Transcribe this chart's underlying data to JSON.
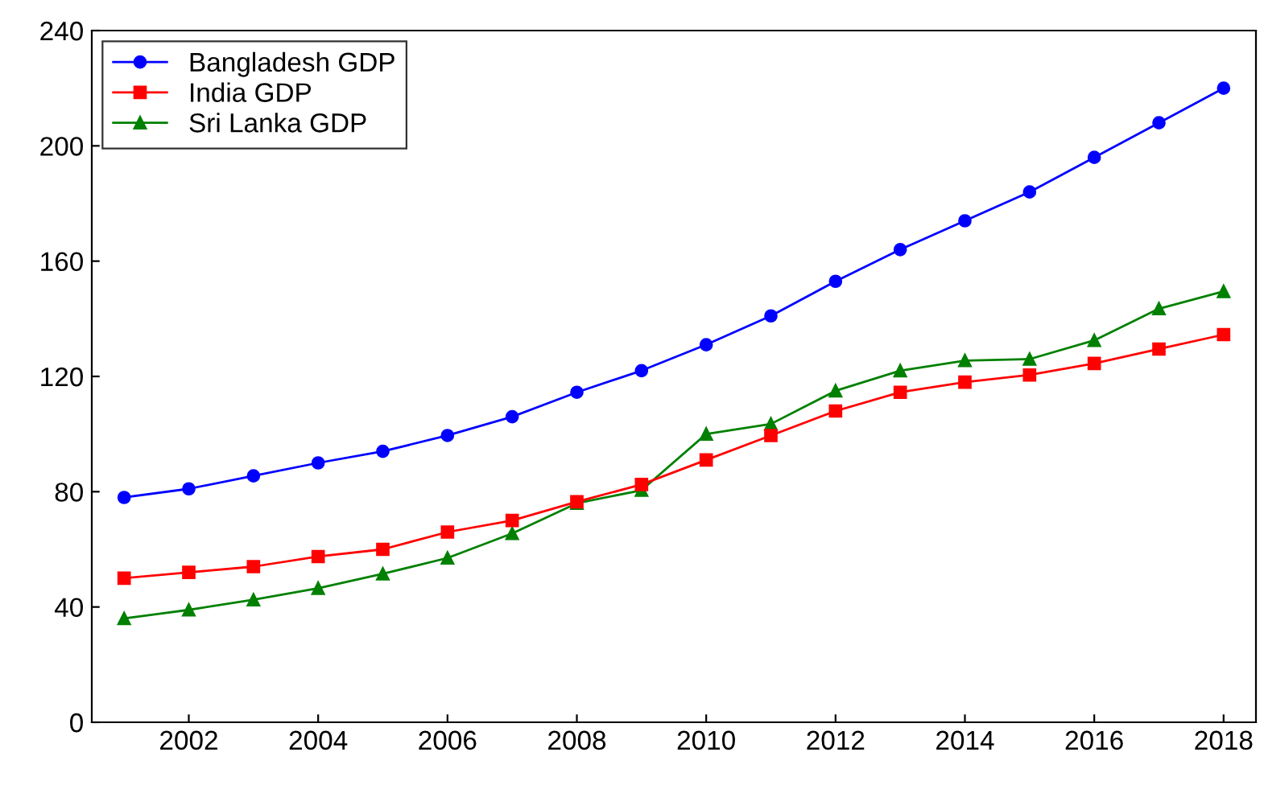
{
  "chart_data": {
    "type": "line",
    "x": [
      2001,
      2002,
      2003,
      2004,
      2005,
      2006,
      2007,
      2008,
      2009,
      2010,
      2011,
      2012,
      2013,
      2014,
      2015,
      2016,
      2017,
      2018
    ],
    "series": [
      {
        "name": "Bangladesh GDP",
        "color": "#0000ff",
        "marker": "circle",
        "values": [
          78,
          81,
          85.5,
          90,
          94,
          99.5,
          106,
          114.5,
          122,
          131,
          141,
          153,
          164,
          174,
          184,
          196,
          208,
          220
        ]
      },
      {
        "name": "India GDP",
        "color": "#ff0000",
        "marker": "square",
        "values": [
          50,
          52,
          54,
          57.5,
          60,
          66,
          70,
          76.5,
          82.5,
          91,
          99.5,
          108,
          114.5,
          118,
          120.5,
          124.5,
          129.5,
          134.5
        ]
      },
      {
        "name": "Sri Lanka GDP",
        "color": "#008000",
        "marker": "triangle",
        "values": [
          36,
          39,
          42.5,
          46.5,
          51.5,
          57,
          65.5,
          76,
          80.5,
          100,
          103.5,
          115,
          122,
          125.5,
          126,
          132.5,
          143.5,
          149.5
        ]
      }
    ],
    "xlim": [
      2000.5,
      2018.5
    ],
    "xticks": [
      2002,
      2004,
      2006,
      2008,
      2010,
      2012,
      2014,
      2016,
      2018
    ],
    "ylim": [
      0,
      240
    ],
    "yticks": [
      0,
      40,
      80,
      120,
      160,
      200,
      240
    ],
    "grid": false,
    "legend": "top left",
    "line_style": "solid"
  }
}
